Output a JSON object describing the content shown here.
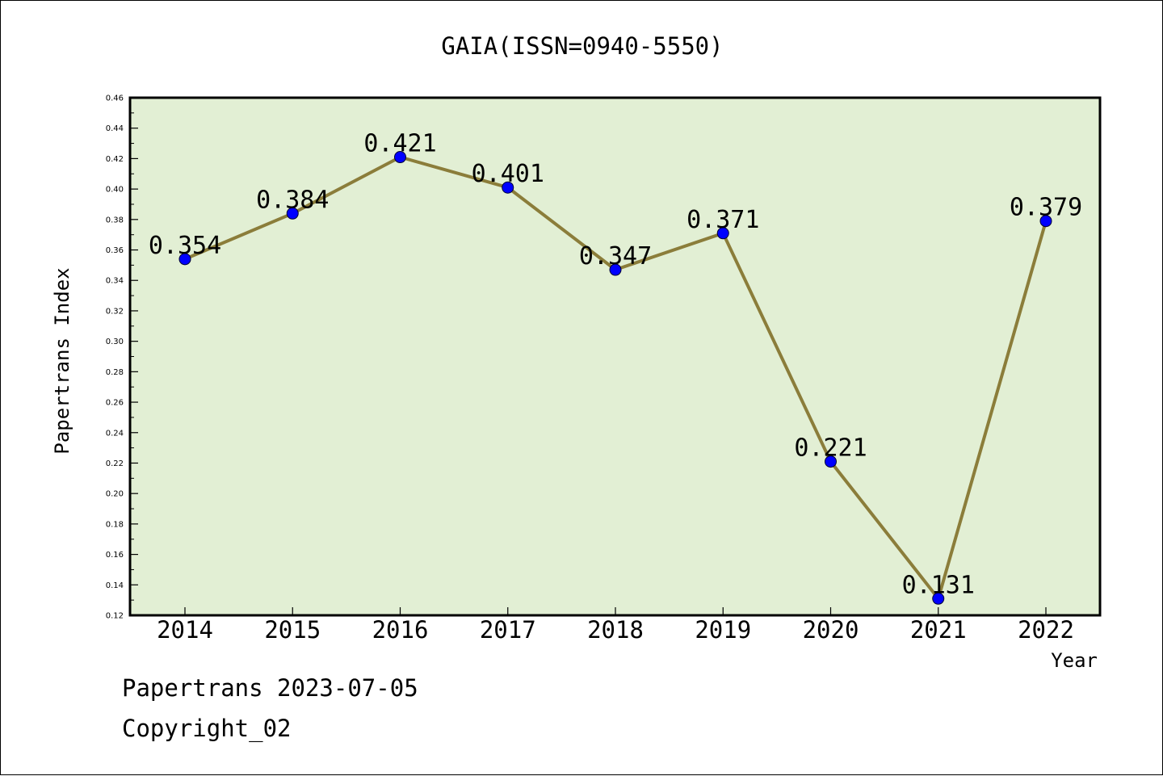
{
  "chart_data": {
    "type": "line",
    "title": "GAIA(ISSN=0940-5550)",
    "xlabel": "Year",
    "ylabel": "Papertrans Index",
    "categories": [
      "2014",
      "2015",
      "2016",
      "2017",
      "2018",
      "2019",
      "2020",
      "2021",
      "2022"
    ],
    "series": [
      {
        "values": [
          0.354,
          0.384,
          0.421,
          0.401,
          0.347,
          0.371,
          0.221,
          0.131,
          0.379
        ],
        "data_labels": [
          "0.354",
          "0.384",
          "0.421",
          "0.401",
          "0.347",
          "0.371",
          "0.221",
          "0.131",
          "0.379"
        ],
        "line_color": "#8b7d3a",
        "marker_color": "#0000ff"
      }
    ],
    "ylim": [
      0.12,
      0.46
    ],
    "yticks": [
      "0.12",
      "0.14",
      "0.16",
      "0.18",
      "0.20",
      "0.22",
      "0.24",
      "0.26",
      "0.28",
      "0.30",
      "0.32",
      "0.34",
      "0.36",
      "0.38",
      "0.40",
      "0.42",
      "0.44",
      "0.46"
    ],
    "plot_background": "#e2efd4",
    "grid": false,
    "legend": "none"
  },
  "footer": {
    "line1": "Papertrans 2023-07-05",
    "line2": "Copyright_02"
  }
}
